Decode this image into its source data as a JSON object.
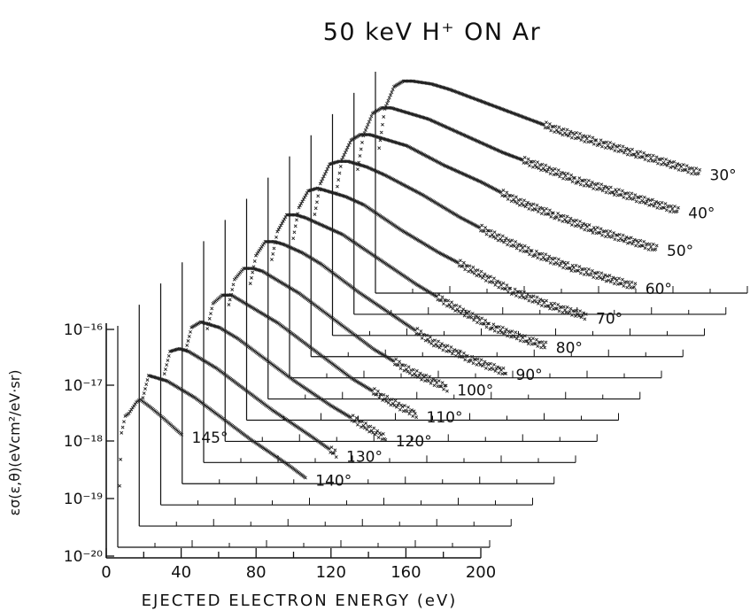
{
  "chart_data": {
    "type": "scatter",
    "title": "50 keV H⁺ ON Ar",
    "xlabel": "EJECTED ELECTRON ENERGY (eV)",
    "ylabel": "εσ(ε,θ)(eVcm²/eV·sr)",
    "x_ticks": [
      "0",
      "40",
      "80",
      "120",
      "160",
      "200"
    ],
    "y_ticks": [
      "10⁻¹⁶",
      "10⁻¹⁷",
      "10⁻¹⁸",
      "10⁻¹⁹",
      "10⁻²⁰"
    ],
    "xlim": [
      0,
      200
    ],
    "ylog": true,
    "layout_note": "stacked 3D-offset panels",
    "series": [
      {
        "name": "30°",
        "values": [
          [
            2,
            -17.0
          ],
          [
            5,
            -16.3
          ],
          [
            10,
            -15.9
          ],
          [
            15,
            -15.8
          ],
          [
            20,
            -15.8
          ],
          [
            30,
            -15.85
          ],
          [
            40,
            -15.95
          ],
          [
            60,
            -16.2
          ],
          [
            80,
            -16.45
          ],
          [
            100,
            -16.7
          ],
          [
            120,
            -16.9
          ],
          [
            140,
            -17.1
          ],
          [
            160,
            -17.3
          ],
          [
            175,
            -17.45
          ]
        ]
      },
      {
        "name": "40°",
        "values": [
          [
            2,
            -17.0
          ],
          [
            5,
            -16.4
          ],
          [
            10,
            -16.0
          ],
          [
            15,
            -15.9
          ],
          [
            20,
            -15.9
          ],
          [
            30,
            -16.0
          ],
          [
            40,
            -16.1
          ],
          [
            60,
            -16.4
          ],
          [
            80,
            -16.7
          ],
          [
            100,
            -16.95
          ],
          [
            120,
            -17.2
          ],
          [
            140,
            -17.4
          ],
          [
            160,
            -17.6
          ],
          [
            175,
            -17.75
          ]
        ]
      },
      {
        "name": "50°",
        "values": [
          [
            2,
            -17.05
          ],
          [
            5,
            -16.45
          ],
          [
            10,
            -16.1
          ],
          [
            15,
            -16.0
          ],
          [
            20,
            -16.0
          ],
          [
            30,
            -16.1
          ],
          [
            40,
            -16.2
          ],
          [
            60,
            -16.55
          ],
          [
            80,
            -16.85
          ],
          [
            100,
            -17.2
          ],
          [
            120,
            -17.45
          ],
          [
            140,
            -17.7
          ],
          [
            160,
            -17.9
          ],
          [
            175,
            -18.05
          ]
        ]
      },
      {
        "name": "60°",
        "values": [
          [
            2,
            -17.05
          ],
          [
            5,
            -16.5
          ],
          [
            10,
            -16.15
          ],
          [
            15,
            -16.1
          ],
          [
            20,
            -16.1
          ],
          [
            30,
            -16.2
          ],
          [
            40,
            -16.35
          ],
          [
            60,
            -16.7
          ],
          [
            80,
            -17.1
          ],
          [
            100,
            -17.45
          ],
          [
            120,
            -17.75
          ],
          [
            140,
            -18.0
          ],
          [
            160,
            -18.2
          ],
          [
            175,
            -18.35
          ]
        ]
      },
      {
        "name": "70°",
        "values": [
          [
            2,
            -17.1
          ],
          [
            5,
            -16.55
          ],
          [
            10,
            -16.25
          ],
          [
            15,
            -16.2
          ],
          [
            20,
            -16.25
          ],
          [
            30,
            -16.35
          ],
          [
            40,
            -16.5
          ],
          [
            60,
            -16.95
          ],
          [
            80,
            -17.35
          ],
          [
            100,
            -17.7
          ],
          [
            120,
            -18.05
          ],
          [
            140,
            -18.3
          ],
          [
            160,
            -18.5
          ]
        ]
      },
      {
        "name": "80°",
        "values": [
          [
            2,
            -17.1
          ],
          [
            5,
            -16.6
          ],
          [
            10,
            -16.3
          ],
          [
            15,
            -16.3
          ],
          [
            20,
            -16.35
          ],
          [
            30,
            -16.5
          ],
          [
            40,
            -16.65
          ],
          [
            60,
            -17.1
          ],
          [
            80,
            -17.55
          ],
          [
            100,
            -17.95
          ],
          [
            120,
            -18.3
          ],
          [
            140,
            -18.55
          ],
          [
            150,
            -18.65
          ]
        ]
      },
      {
        "name": "90°",
        "values": [
          [
            2,
            -17.15
          ],
          [
            5,
            -16.65
          ],
          [
            10,
            -16.4
          ],
          [
            15,
            -16.4
          ],
          [
            20,
            -16.45
          ],
          [
            30,
            -16.6
          ],
          [
            40,
            -16.8
          ],
          [
            60,
            -17.3
          ],
          [
            80,
            -17.75
          ],
          [
            100,
            -18.2
          ],
          [
            120,
            -18.5
          ],
          [
            140,
            -18.75
          ]
        ]
      },
      {
        "name": "100°",
        "values": [
          [
            2,
            -17.15
          ],
          [
            5,
            -16.7
          ],
          [
            10,
            -16.5
          ],
          [
            15,
            -16.5
          ],
          [
            20,
            -16.55
          ],
          [
            30,
            -16.75
          ],
          [
            40,
            -16.95
          ],
          [
            60,
            -17.45
          ],
          [
            80,
            -17.95
          ],
          [
            100,
            -18.35
          ],
          [
            120,
            -18.65
          ]
        ]
      },
      {
        "name": "110°",
        "values": [
          [
            2,
            -17.2
          ],
          [
            5,
            -16.75
          ],
          [
            10,
            -16.6
          ],
          [
            15,
            -16.6
          ],
          [
            20,
            -16.7
          ],
          [
            30,
            -16.9
          ],
          [
            40,
            -17.1
          ],
          [
            60,
            -17.6
          ],
          [
            80,
            -18.1
          ],
          [
            100,
            -18.5
          ],
          [
            115,
            -18.75
          ]
        ]
      },
      {
        "name": "120°",
        "values": [
          [
            2,
            -17.2
          ],
          [
            5,
            -16.8
          ],
          [
            10,
            -16.7
          ],
          [
            15,
            -16.75
          ],
          [
            20,
            -16.8
          ],
          [
            30,
            -17.0
          ],
          [
            40,
            -17.25
          ],
          [
            60,
            -17.75
          ],
          [
            80,
            -18.2
          ],
          [
            100,
            -18.6
          ],
          [
            110,
            -18.8
          ]
        ]
      },
      {
        "name": "130°",
        "values": [
          [
            2,
            -17.25
          ],
          [
            5,
            -16.85
          ],
          [
            10,
            -16.8
          ],
          [
            15,
            -16.85
          ],
          [
            20,
            -16.95
          ],
          [
            30,
            -17.15
          ],
          [
            40,
            -17.4
          ],
          [
            60,
            -17.9
          ],
          [
            80,
            -18.35
          ],
          [
            95,
            -18.7
          ]
        ]
      },
      {
        "name": "140°",
        "values": [
          [
            2,
            -17.3
          ],
          [
            5,
            -16.9
          ],
          [
            10,
            -16.95
          ],
          [
            15,
            -17.0
          ],
          [
            20,
            -17.1
          ],
          [
            30,
            -17.3
          ],
          [
            40,
            -17.55
          ],
          [
            60,
            -18.05
          ],
          [
            80,
            -18.5
          ],
          [
            90,
            -18.75
          ]
        ]
      },
      {
        "name": "145°",
        "values": [
          [
            1,
            -18.5
          ],
          [
            2,
            -17.55
          ],
          [
            4,
            -17.25
          ],
          [
            6,
            -17.2
          ],
          [
            8,
            -17.1
          ],
          [
            10,
            -17.0
          ],
          [
            12,
            -16.95
          ],
          [
            14,
            -17.0
          ],
          [
            18,
            -17.1
          ],
          [
            25,
            -17.3
          ],
          [
            35,
            -17.6
          ]
        ]
      }
    ]
  }
}
